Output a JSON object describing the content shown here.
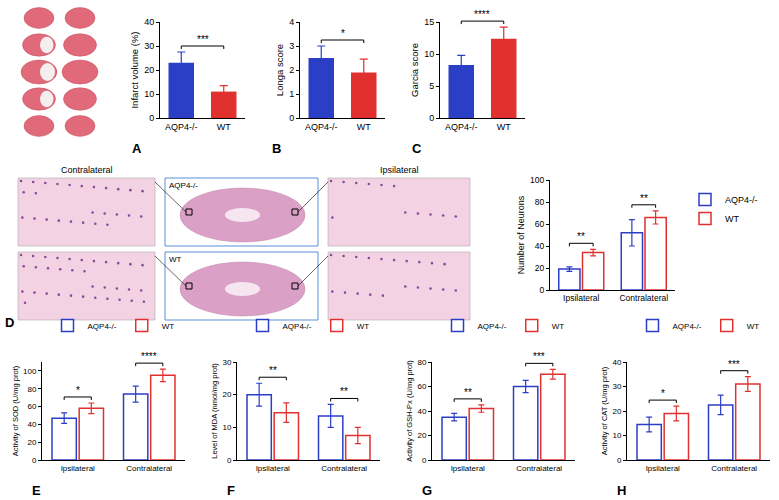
{
  "chart_data": [
    {
      "panel": "A",
      "type": "bar",
      "categories": [
        "AQP4-/-",
        "WT"
      ],
      "values": [
        23,
        11
      ],
      "errors": [
        4.5,
        2.5
      ],
      "colors": [
        "#2b3ec6",
        "#e0312f"
      ],
      "y_label": "Infarct volume (%)",
      "ylim": [
        0,
        40
      ],
      "yticks": [
        0,
        10,
        20,
        30,
        40
      ],
      "significance": [
        "***"
      ],
      "marker": "filled"
    },
    {
      "panel": "B",
      "type": "bar",
      "categories": [
        "AQP4-/-",
        "WT"
      ],
      "values": [
        2.5,
        1.9
      ],
      "errors": [
        0.5,
        0.55
      ],
      "colors": [
        "#2b3ec6",
        "#e0312f"
      ],
      "y_label": "Longa score",
      "ylim": [
        0,
        4
      ],
      "yticks": [
        0,
        1,
        2,
        3,
        4
      ],
      "significance": [
        "*"
      ],
      "marker": "filled"
    },
    {
      "panel": "C",
      "type": "bar",
      "categories": [
        "AQP4-/-",
        "WT"
      ],
      "values": [
        8.3,
        12.4
      ],
      "errors": [
        1.5,
        1.8
      ],
      "colors": [
        "#2b3ec6",
        "#e0312f"
      ],
      "y_label": "Garcia score",
      "ylim": [
        0,
        15
      ],
      "yticks": [
        0,
        5,
        10,
        15
      ],
      "significance": [
        "****"
      ],
      "marker": "filled"
    },
    {
      "panel": "D",
      "type": "bar",
      "categories": [
        "Ipsilateral",
        "Contralateral"
      ],
      "series": [
        {
          "name": "AQP4-/-",
          "color": "#2b3ec6",
          "values": [
            19,
            52
          ],
          "errors": [
            2,
            12
          ]
        },
        {
          "name": "WT",
          "color": "#e0312f",
          "values": [
            34,
            66
          ],
          "errors": [
            3,
            6
          ]
        }
      ],
      "y_label": "Number of Neurons",
      "ylim": [
        0,
        100
      ],
      "yticks": [
        0,
        20,
        40,
        60,
        80,
        100
      ],
      "legend": "right",
      "significance": [
        "**",
        "**"
      ],
      "marker": "outline",
      "histology": {
        "columns": [
          "Contralateral",
          "Ipsilateral"
        ],
        "rows": [
          "AQP4-/-",
          "WT"
        ]
      }
    },
    {
      "panel": "E",
      "type": "bar",
      "categories": [
        "Ipsilateral",
        "Contralateral"
      ],
      "series": [
        {
          "name": "AQP4-/-",
          "color": "#2b3ec6",
          "values": [
            47,
            74
          ],
          "errors": [
            6,
            9
          ]
        },
        {
          "name": "WT",
          "color": "#e0312f",
          "values": [
            58,
            95
          ],
          "errors": [
            6,
            7
          ]
        }
      ],
      "y_label": "Activity of SOD (U/mg prot)",
      "ylim": [
        0,
        110
      ],
      "yticks": [
        0,
        20,
        40,
        60,
        80,
        100
      ],
      "legend": "top",
      "significance": [
        "*",
        "****"
      ],
      "marker": "outline"
    },
    {
      "panel": "F",
      "type": "bar",
      "categories": [
        "Ipsilateral",
        "Contralateral"
      ],
      "series": [
        {
          "name": "AQP4-/-",
          "color": "#2b3ec6",
          "values": [
            20,
            13.5
          ],
          "errors": [
            3.5,
            3.5
          ]
        },
        {
          "name": "WT",
          "color": "#e0312f",
          "values": [
            14.5,
            7.5
          ],
          "errors": [
            3,
            2.5
          ]
        }
      ],
      "y_label": "Level of MDA (nmol/mg prot)",
      "ylim": [
        0,
        30
      ],
      "yticks": [
        0,
        10,
        20,
        30
      ],
      "legend": "top",
      "significance": [
        "**",
        "**"
      ],
      "marker": "outline"
    },
    {
      "panel": "G",
      "type": "bar",
      "categories": [
        "Ipsilateral",
        "Contralateral"
      ],
      "series": [
        {
          "name": "AQP4-/-",
          "color": "#2b3ec6",
          "values": [
            35,
            60
          ],
          "errors": [
            3,
            5
          ]
        },
        {
          "name": "WT",
          "color": "#e0312f",
          "values": [
            42,
            70
          ],
          "errors": [
            3,
            4
          ]
        }
      ],
      "y_label": "Activity of GSH-Px (U/mg prot)",
      "ylim": [
        0,
        80
      ],
      "yticks": [
        0,
        20,
        40,
        60,
        80
      ],
      "legend": "top",
      "significance": [
        "**",
        "***"
      ],
      "marker": "outline"
    },
    {
      "panel": "H",
      "type": "bar",
      "categories": [
        "Ipsilateral",
        "Contralateral"
      ],
      "series": [
        {
          "name": "AQP4-/-",
          "color": "#2b3ec6",
          "values": [
            14.5,
            22.5
          ],
          "errors": [
            3,
            4
          ]
        },
        {
          "name": "WT",
          "color": "#e0312f",
          "values": [
            19,
            31
          ],
          "errors": [
            3,
            3
          ]
        }
      ],
      "y_label": "Activity of CAT (U/mg prot)",
      "ylim": [
        0,
        40
      ],
      "yticks": [
        0,
        10,
        20,
        30,
        40
      ],
      "legend": "top",
      "significance": [
        "*",
        "***"
      ],
      "marker": "outline"
    }
  ]
}
